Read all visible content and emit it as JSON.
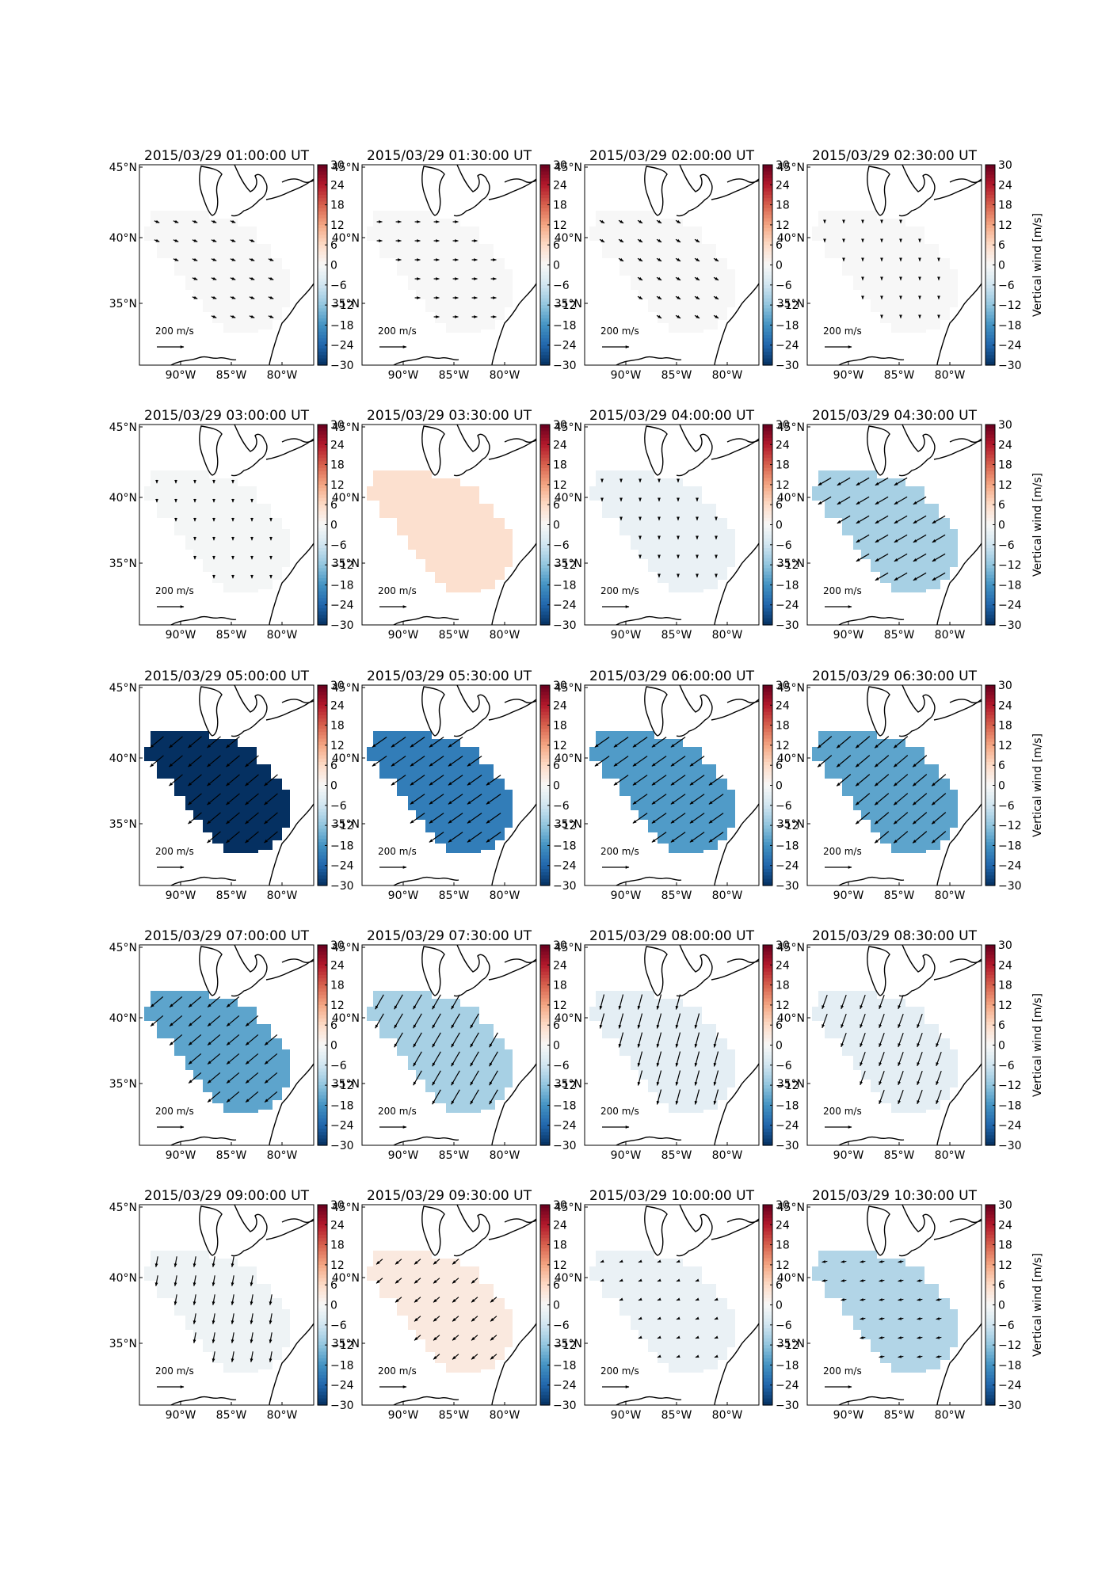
{
  "figure": {
    "colorbar": {
      "label": "Vertical wind [m/s]",
      "ticks": [
        "30",
        "24",
        "18",
        "12",
        "6",
        "0",
        "−6",
        "−12",
        "−18",
        "−24",
        "−30"
      ],
      "colors": [
        "#67001f",
        "#b2182b",
        "#d6604d",
        "#f4a582",
        "#fddbc7",
        "#f7f7f7",
        "#d1e5f0",
        "#92c5de",
        "#4393c3",
        "#2166ac",
        "#053061"
      ]
    },
    "map": {
      "xticks": [
        "90°W",
        "85°W",
        "80°W"
      ],
      "yticks": [
        "45°N",
        "40°N",
        "35°N"
      ],
      "scale_label": "200 m/s",
      "region_color_domain": [
        -30,
        30
      ]
    }
  },
  "chart_data": [
    {
      "type": "heatmap",
      "title": "2015/03/29 01:00:00 UT",
      "vertical_wind": 0,
      "wind_direction_deg": -20,
      "wind_speed": 40
    },
    {
      "type": "heatmap",
      "title": "2015/03/29 01:30:00 UT",
      "vertical_wind": 0,
      "wind_direction_deg": 0,
      "wind_speed": 40
    },
    {
      "type": "heatmap",
      "title": "2015/03/29 02:00:00 UT",
      "vertical_wind": 0,
      "wind_direction_deg": -30,
      "wind_speed": 40
    },
    {
      "type": "heatmap",
      "title": "2015/03/29 02:30:00 UT",
      "vertical_wind": 0,
      "wind_direction_deg": -90,
      "wind_speed": 20
    },
    {
      "type": "heatmap",
      "title": "2015/03/29 03:00:00 UT",
      "vertical_wind": -0.5,
      "wind_direction_deg": -90,
      "wind_speed": 25
    },
    {
      "type": "heatmap",
      "title": "2015/03/29 03:30:00 UT",
      "vertical_wind": 5,
      "wind_direction_deg": 0,
      "wind_speed": 0
    },
    {
      "type": "heatmap",
      "title": "2015/03/29 04:00:00 UT",
      "vertical_wind": -2,
      "wind_direction_deg": -90,
      "wind_speed": 10
    },
    {
      "type": "heatmap",
      "title": "2015/03/29 04:30:00 UT",
      "vertical_wind": -10,
      "wind_direction_deg": -150,
      "wind_speed": 110
    },
    {
      "type": "heatmap",
      "title": "2015/03/29 05:00:00 UT",
      "vertical_wind": -30,
      "wind_direction_deg": -140,
      "wind_speed": 130
    },
    {
      "type": "heatmap",
      "title": "2015/03/29 05:30:00 UT",
      "vertical_wind": -21,
      "wind_direction_deg": -145,
      "wind_speed": 130
    },
    {
      "type": "heatmap",
      "title": "2015/03/29 06:00:00 UT",
      "vertical_wind": -17,
      "wind_direction_deg": -145,
      "wind_speed": 130
    },
    {
      "type": "heatmap",
      "title": "2015/03/29 06:30:00 UT",
      "vertical_wind": -16,
      "wind_direction_deg": -140,
      "wind_speed": 135
    },
    {
      "type": "heatmap",
      "title": "2015/03/29 07:00:00 UT",
      "vertical_wind": -16,
      "wind_direction_deg": -140,
      "wind_speed": 120
    },
    {
      "type": "heatmap",
      "title": "2015/03/29 07:30:00 UT",
      "vertical_wind": -10,
      "wind_direction_deg": -120,
      "wind_speed": 125
    },
    {
      "type": "heatmap",
      "title": "2015/03/29 08:00:00 UT",
      "vertical_wind": -3,
      "wind_direction_deg": -105,
      "wind_speed": 115
    },
    {
      "type": "heatmap",
      "title": "2015/03/29 08:30:00 UT",
      "vertical_wind": -3,
      "wind_direction_deg": -110,
      "wind_speed": 110
    },
    {
      "type": "heatmap",
      "title": "2015/03/29 09:00:00 UT",
      "vertical_wind": -1.5,
      "wind_direction_deg": -100,
      "wind_speed": 80
    },
    {
      "type": "heatmap",
      "title": "2015/03/29 09:30:00 UT",
      "vertical_wind": 3,
      "wind_direction_deg": -140,
      "wind_speed": 60
    },
    {
      "type": "heatmap",
      "title": "2015/03/29 10:00:00 UT",
      "vertical_wind": -2,
      "wind_direction_deg": -160,
      "wind_speed": 25
    },
    {
      "type": "heatmap",
      "title": "2015/03/29 10:30:00 UT",
      "vertical_wind": -9,
      "wind_direction_deg": -170,
      "wind_speed": 40
    }
  ]
}
